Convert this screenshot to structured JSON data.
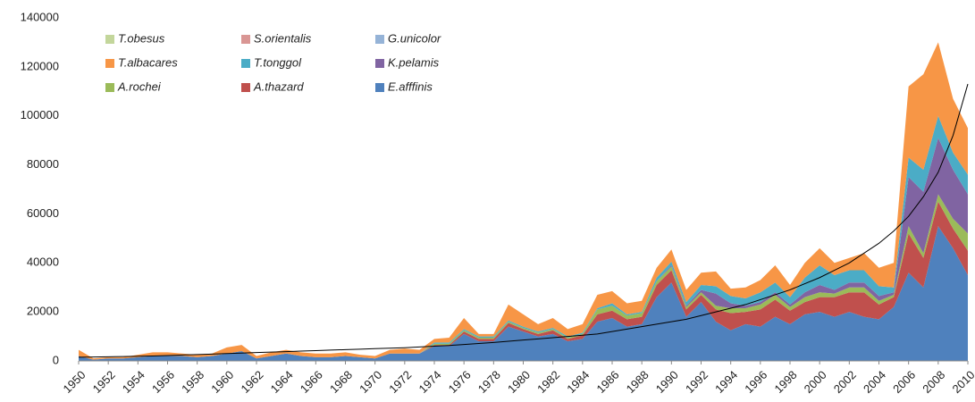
{
  "chart_data": {
    "type": "stacked-area",
    "x": [
      1950,
      1951,
      1952,
      1953,
      1954,
      1955,
      1956,
      1957,
      1958,
      1959,
      1960,
      1961,
      1962,
      1963,
      1964,
      1965,
      1966,
      1967,
      1968,
      1969,
      1970,
      1971,
      1972,
      1973,
      1974,
      1975,
      1976,
      1977,
      1978,
      1979,
      1980,
      1981,
      1982,
      1983,
      1984,
      1985,
      1986,
      1987,
      1988,
      1989,
      1990,
      1991,
      1992,
      1993,
      1994,
      1995,
      1996,
      1997,
      1998,
      1999,
      2000,
      2001,
      2002,
      2003,
      2004,
      2005,
      2006,
      2007,
      2008,
      2009,
      2010
    ],
    "xlim": [
      1950,
      2010
    ],
    "xticks": [
      1950,
      1952,
      1954,
      1956,
      1958,
      1960,
      1962,
      1964,
      1966,
      1968,
      1970,
      1972,
      1974,
      1976,
      1978,
      1980,
      1982,
      1984,
      1986,
      1988,
      1990,
      1992,
      1994,
      1996,
      1998,
      2000,
      2002,
      2004,
      2006,
      2008,
      2010
    ],
    "ylim": [
      0,
      140000
    ],
    "yticks": [
      0,
      20000,
      40000,
      60000,
      80000,
      100000,
      120000,
      140000
    ],
    "series": [
      {
        "name": "T.obesus",
        "color": "#c3d69b",
        "values": [
          0,
          0,
          0,
          0,
          0,
          0,
          0,
          0,
          0,
          0,
          0,
          0,
          0,
          0,
          0,
          0,
          0,
          0,
          0,
          0,
          0,
          0,
          0,
          0,
          0,
          0,
          0,
          0,
          0,
          0,
          0,
          0,
          0,
          0,
          0,
          0,
          0,
          0,
          0,
          0,
          0,
          0,
          0,
          0,
          0,
          0,
          0,
          0,
          0,
          0,
          0,
          0,
          0,
          0,
          0,
          0,
          0,
          0,
          0,
          0,
          0
        ]
      },
      {
        "name": "S.orientalis",
        "color": "#d99694",
        "values": [
          0,
          0,
          0,
          0,
          0,
          0,
          0,
          0,
          0,
          0,
          0,
          0,
          0,
          0,
          0,
          0,
          0,
          0,
          0,
          0,
          0,
          0,
          0,
          0,
          0,
          0,
          0,
          0,
          0,
          0,
          0,
          0,
          0,
          0,
          0,
          0,
          0,
          0,
          0,
          0,
          0,
          0,
          0,
          0,
          0,
          0,
          0,
          0,
          0,
          0,
          0,
          0,
          0,
          0,
          0,
          0,
          0,
          0,
          0,
          0,
          0
        ]
      },
      {
        "name": "G.unicolor",
        "color": "#95b3d7",
        "values": [
          0,
          0,
          0,
          0,
          0,
          0,
          0,
          0,
          0,
          0,
          0,
          0,
          0,
          0,
          0,
          0,
          0,
          0,
          0,
          0,
          0,
          0,
          0,
          0,
          0,
          0,
          0,
          0,
          0,
          0,
          0,
          0,
          0,
          0,
          0,
          0,
          0,
          0,
          0,
          0,
          0,
          0,
          0,
          0,
          0,
          0,
          0,
          0,
          0,
          0,
          0,
          0,
          0,
          0,
          0,
          0,
          0,
          0,
          0,
          0,
          0
        ]
      },
      {
        "name": "T.albacares",
        "color": "#f79646",
        "values": [
          2500,
          500,
          500,
          500,
          1000,
          1500,
          1500,
          1000,
          1000,
          1000,
          2500,
          2500,
          1000,
          1500,
          1500,
          1500,
          1500,
          1500,
          1500,
          1000,
          1000,
          1500,
          2000,
          1500,
          1500,
          2000,
          4500,
          1000,
          1000,
          6500,
          5000,
          3000,
          4000,
          3000,
          3500,
          5500,
          5000,
          4500,
          4500,
          4000,
          5000,
          5000,
          5000,
          6000,
          3000,
          4500,
          5000,
          7000,
          5000,
          6000,
          7000,
          5000,
          5000,
          7000,
          7500,
          10000,
          29000,
          39000,
          30000,
          22000,
          19000
        ]
      },
      {
        "name": "T.tonggol",
        "color": "#4bacc6",
        "values": [
          0,
          0,
          0,
          0,
          0,
          0,
          0,
          0,
          0,
          0,
          0,
          0,
          0,
          0,
          0,
          0,
          0,
          0,
          0,
          0,
          0,
          0,
          0,
          0,
          500,
          500,
          500,
          500,
          500,
          500,
          500,
          500,
          500,
          500,
          500,
          500,
          1000,
          500,
          500,
          1500,
          1500,
          1500,
          2000,
          3000,
          3000,
          3000,
          4000,
          4000,
          3000,
          6000,
          8000,
          6000,
          5000,
          5000,
          4000,
          2000,
          8000,
          9000,
          9000,
          7000,
          8000
        ]
      },
      {
        "name": "K.pelamis",
        "color": "#8064a2",
        "values": [
          0,
          0,
          0,
          0,
          0,
          0,
          0,
          0,
          0,
          0,
          0,
          0,
          0,
          0,
          0,
          0,
          0,
          0,
          0,
          0,
          0,
          0,
          0,
          0,
          0,
          0,
          0,
          0,
          0,
          0,
          0,
          0,
          0,
          0,
          0,
          0,
          0,
          0,
          0,
          0,
          500,
          500,
          1000,
          5000,
          2000,
          1000,
          1000,
          1000,
          1000,
          2000,
          3000,
          1500,
          2000,
          2000,
          2000,
          1000,
          20000,
          25000,
          23000,
          20000,
          16000
        ]
      },
      {
        "name": "A.rochei",
        "color": "#9bbb59",
        "values": [
          0,
          0,
          0,
          0,
          0,
          0,
          0,
          0,
          0,
          0,
          0,
          0,
          0,
          0,
          0,
          0,
          0,
          0,
          0,
          0,
          0,
          0,
          0,
          0,
          500,
          500,
          500,
          500,
          500,
          500,
          500,
          500,
          500,
          500,
          500,
          2000,
          2000,
          1500,
          1500,
          1500,
          1500,
          1000,
          1000,
          1500,
          2000,
          1500,
          2000,
          2000,
          1500,
          2000,
          2000,
          1500,
          2000,
          2000,
          1500,
          1000,
          3000,
          2000,
          3000,
          4000,
          7000
        ]
      },
      {
        "name": "A.thazard",
        "color": "#c0504d",
        "values": [
          0,
          0,
          0,
          0,
          0,
          0,
          0,
          0,
          0,
          0,
          0,
          0,
          0,
          0,
          0,
          0,
          0,
          0,
          0,
          0,
          0,
          0,
          0,
          0,
          500,
          500,
          1000,
          1000,
          1000,
          1500,
          1000,
          1000,
          1500,
          1000,
          1500,
          3000,
          3000,
          3000,
          3000,
          5000,
          5000,
          3000,
          3000,
          5000,
          7000,
          5000,
          7000,
          7000,
          5500,
          5000,
          6000,
          8000,
          8000,
          10000,
          6000,
          4000,
          16000,
          12000,
          10000,
          8000,
          10000
        ]
      },
      {
        "name": "E.afffinis",
        "color": "#4f81bd",
        "values": [
          2000,
          500,
          1000,
          1000,
          1500,
          2000,
          2000,
          2000,
          1500,
          2000,
          3000,
          4000,
          1000,
          2000,
          3000,
          2000,
          1500,
          1500,
          2000,
          1500,
          1000,
          3000,
          3000,
          3000,
          6000,
          6000,
          11000,
          8000,
          8000,
          14000,
          12000,
          10000,
          11000,
          8000,
          9000,
          16000,
          17500,
          14000,
          15000,
          26000,
          32000,
          18000,
          24000,
          16000,
          12500,
          15000,
          14000,
          18000,
          15000,
          19000,
          20000,
          18000,
          20000,
          18000,
          17000,
          22000,
          36000,
          30000,
          55000,
          46000,
          35000
        ]
      }
    ],
    "trendline": {
      "color": "#000000",
      "values": [
        1500,
        1600,
        1700,
        1800,
        1900,
        2000,
        2200,
        2400,
        2600,
        2800,
        3000,
        3200,
        3400,
        3600,
        3800,
        4000,
        4200,
        4400,
        4600,
        4800,
        5000,
        5200,
        5400,
        5700,
        6000,
        6300,
        6700,
        7100,
        7500,
        8000,
        8500,
        9000,
        9500,
        10000,
        10500,
        11000,
        12000,
        13000,
        14000,
        15000,
        16000,
        17000,
        18500,
        20000,
        21500,
        23000,
        25000,
        27000,
        29000,
        31500,
        34000,
        37000,
        40000,
        44000,
        48000,
        53000,
        59000,
        67000,
        77000,
        92000,
        113000
      ]
    }
  }
}
